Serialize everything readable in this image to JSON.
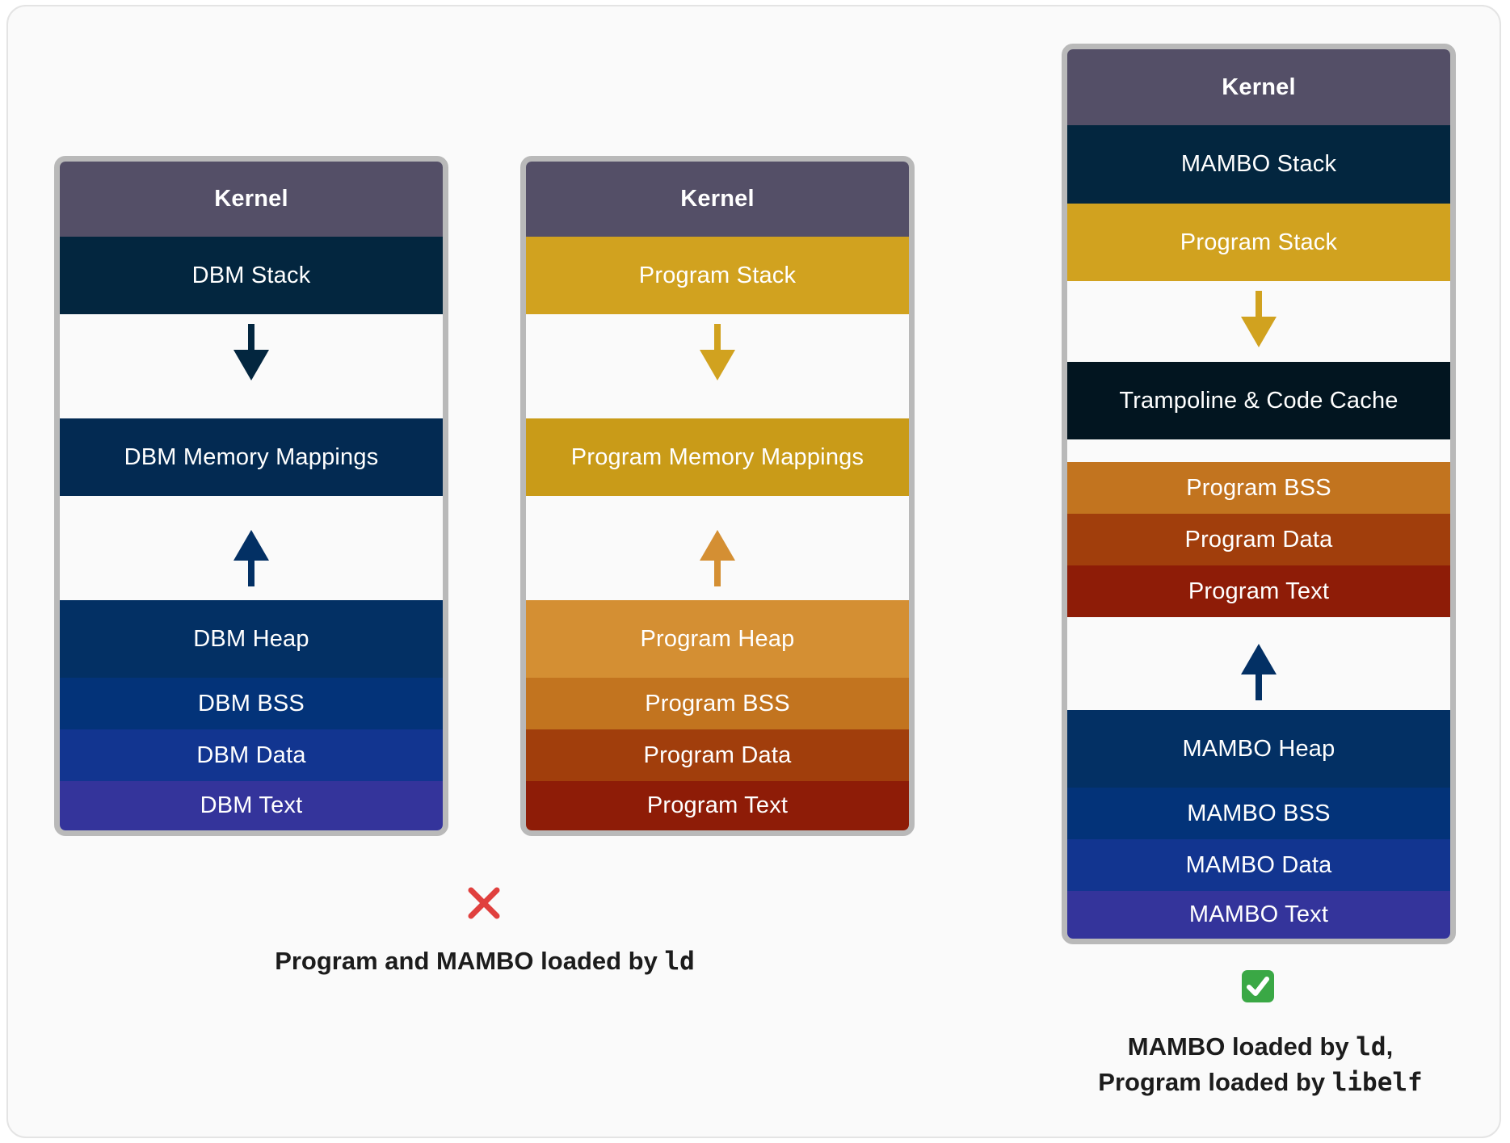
{
  "colors": {
    "kernel": "#544f67",
    "dbm_stack": "#03263f",
    "dbm_mmap": "#032a52",
    "dbm_heap": "#033064",
    "dbm_bss": "#033379",
    "dbm_data": "#123590",
    "dbm_text": "#34349b",
    "prog_stack": "#d1a21f",
    "prog_mmap": "#c99b18",
    "prog_heap": "#d48f33",
    "prog_bss": "#c2741f",
    "prog_data": "#a13e0c",
    "prog_text": "#8e1c07",
    "trampoline": "#021520",
    "arrow_dbm_down": "#03263f",
    "arrow_dbm_up": "#033064",
    "arrow_prog_down": "#d1a21f",
    "arrow_prog_up": "#d48f33",
    "cross": "#e0403e",
    "check": "#3aa845"
  },
  "left_stack": {
    "kernel": "Kernel",
    "stack": "DBM Stack",
    "mmap": "DBM Memory Mappings",
    "heap": "DBM Heap",
    "bss": "DBM BSS",
    "data": "DBM Data",
    "text": "DBM Text"
  },
  "middle_stack": {
    "kernel": "Kernel",
    "stack": "Program Stack",
    "mmap": "Program Memory Mappings",
    "heap": "Program Heap",
    "bss": "Program BSS",
    "data": "Program Data",
    "text": "Program Text"
  },
  "right_stack": {
    "kernel": "Kernel",
    "mambo_stack": "MAMBO Stack",
    "program_stack": "Program Stack",
    "trampoline": "Trampoline & Code Cache",
    "program_bss": "Program BSS",
    "program_data": "Program Data",
    "program_text": "Program Text",
    "mambo_heap": "MAMBO Heap",
    "mambo_bss": "MAMBO BSS",
    "mambo_data": "MAMBO Data",
    "mambo_text": "MAMBO Text"
  },
  "left_caption": {
    "mark": "❌",
    "text": "Program and MAMBO loaded by ",
    "code": "ld"
  },
  "right_caption": {
    "mark": "✅",
    "line1_text": "MAMBO loaded by ",
    "line1_code": "ld",
    "line1_suffix": ",",
    "line2_text": "Program loaded by ",
    "line2_code": "libelf"
  }
}
